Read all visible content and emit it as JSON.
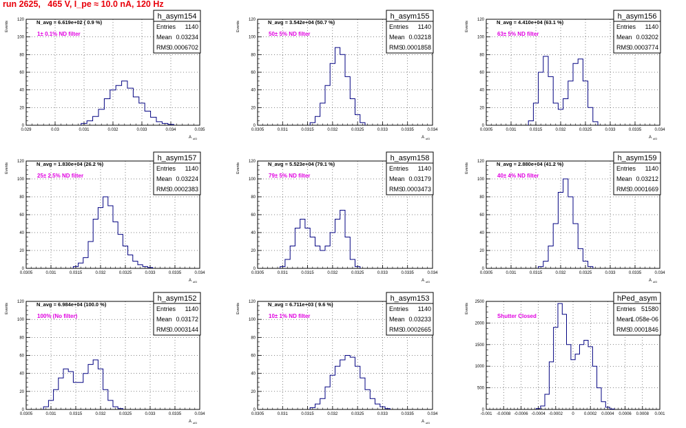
{
  "run_title": "run 2625,   465 V, I_pe ≈ 10.0 nA, 120 Hz",
  "colors": {
    "title": "#e8000b",
    "filter_label": "#e000e0",
    "histogram": "#000080",
    "grid": "#000000"
  },
  "chart_data": [
    {
      "type": "bar",
      "name": "h_asym154",
      "entries": "1140",
      "mean": "0.03234",
      "rms": "0.0006702",
      "navg": "N_avg = 6.619e+02 ( 0.9 %)",
      "filter_label": "1± 0.1% ND filter",
      "xlim": [
        0.029,
        0.035
      ],
      "ylim": [
        0,
        120
      ],
      "xticks": [
        "0.029",
        "0.03",
        "0.031",
        "0.032",
        "0.033",
        "0.034",
        "0.035"
      ],
      "yticks": [
        "0",
        "20",
        "40",
        "60",
        "80",
        "100",
        "120"
      ],
      "xlabel": "A_uID",
      "ylabel": "Events",
      "x": [
        0.031,
        0.0312,
        0.0314,
        0.0316,
        0.0318,
        0.032,
        0.0322,
        0.0324,
        0.0326,
        0.0328,
        0.033,
        0.0332,
        0.0334,
        0.0336,
        0.0338,
        0.034
      ],
      "values": [
        2,
        5,
        10,
        18,
        30,
        40,
        45,
        50,
        42,
        32,
        25,
        16,
        9,
        4,
        2,
        1
      ]
    },
    {
      "type": "bar",
      "name": "h_asym155",
      "entries": "1140",
      "mean": "0.03218",
      "rms": "0.0001858",
      "navg": "N_avg = 3.542e+04 (50.7 %)",
      "filter_label": "50± 5% ND filter",
      "xlim": [
        0.0305,
        0.034
      ],
      "ylim": [
        0,
        120
      ],
      "xticks": [
        "0.0305",
        "0.031",
        "0.0315",
        "0.032",
        "0.0325",
        "0.033",
        "0.0335",
        "0.034"
      ],
      "yticks": [
        "0",
        "20",
        "40",
        "60",
        "80",
        "100",
        "120"
      ],
      "xlabel": "A_uID",
      "ylabel": "Events",
      "x": [
        0.0316,
        0.0317,
        0.0318,
        0.0319,
        0.032,
        0.0321,
        0.0322,
        0.0323,
        0.0324,
        0.0325,
        0.0326
      ],
      "values": [
        3,
        10,
        25,
        45,
        70,
        88,
        80,
        55,
        30,
        12,
        3
      ]
    },
    {
      "type": "bar",
      "name": "h_asym156",
      "entries": "1140",
      "mean": "0.03202",
      "rms": "0.0003774",
      "navg": "N_avg = 4.410e+04 (63.1 %)",
      "filter_label": "63± 5% ND filter",
      "xlim": [
        0.0305,
        0.034
      ],
      "ylim": [
        0,
        120
      ],
      "xticks": [
        "0.0305",
        "0.031",
        "0.0315",
        "0.032",
        "0.0325",
        "0.033",
        "0.0335",
        "0.034"
      ],
      "yticks": [
        "0",
        "20",
        "40",
        "60",
        "80",
        "100",
        "120"
      ],
      "xlabel": "A_uID",
      "ylabel": "Events",
      "x": [
        0.0314,
        0.0315,
        0.0316,
        0.0317,
        0.0318,
        0.0319,
        0.032,
        0.0321,
        0.0322,
        0.0323,
        0.0324,
        0.0325,
        0.0326,
        0.0327
      ],
      "values": [
        5,
        25,
        60,
        78,
        55,
        25,
        18,
        30,
        50,
        70,
        75,
        50,
        20,
        4
      ]
    },
    {
      "type": "bar",
      "name": "h_asym157",
      "entries": "1140",
      "mean": "0.03224",
      "rms": "0.0002383",
      "navg": "N_avg = 1.830e+04 (26.2 %)",
      "filter_label": "25± 2.5% ND filter",
      "xlim": [
        0.0305,
        0.034
      ],
      "ylim": [
        0,
        120
      ],
      "xticks": [
        "0.0305",
        "0.031",
        "0.0315",
        "0.032",
        "0.0325",
        "0.033",
        "0.0335",
        "0.034"
      ],
      "yticks": [
        "0",
        "20",
        "40",
        "60",
        "80",
        "100",
        "120"
      ],
      "xlabel": "A_uID",
      "ylabel": "Events",
      "x": [
        0.0315,
        0.0316,
        0.0317,
        0.0318,
        0.0319,
        0.032,
        0.0321,
        0.0322,
        0.0323,
        0.0324,
        0.0325,
        0.0326,
        0.0327,
        0.0328,
        0.0329,
        0.033
      ],
      "values": [
        2,
        6,
        12,
        30,
        55,
        68,
        80,
        70,
        52,
        38,
        25,
        15,
        8,
        4,
        2,
        1
      ]
    },
    {
      "type": "bar",
      "name": "h_asym158",
      "entries": "1140",
      "mean": "0.03179",
      "rms": "0.0003473",
      "navg": "N_avg = 5.523e+04 (79.1 %)",
      "filter_label": "79± 5% ND filter",
      "xlim": [
        0.0305,
        0.034
      ],
      "ylim": [
        0,
        120
      ],
      "xticks": [
        "0.0305",
        "0.031",
        "0.0315",
        "0.032",
        "0.0325",
        "0.033",
        "0.0335",
        "0.034"
      ],
      "yticks": [
        "0",
        "20",
        "40",
        "60",
        "80",
        "100",
        "120"
      ],
      "xlabel": "A_uID",
      "ylabel": "Events",
      "x": [
        0.031,
        0.0311,
        0.0312,
        0.0313,
        0.0314,
        0.0315,
        0.0316,
        0.0317,
        0.0318,
        0.0319,
        0.032,
        0.0321,
        0.0322,
        0.0323,
        0.0324,
        0.0325
      ],
      "values": [
        2,
        10,
        25,
        45,
        55,
        45,
        35,
        25,
        20,
        25,
        40,
        55,
        65,
        35,
        10,
        2
      ]
    },
    {
      "type": "bar",
      "name": "h_asym159",
      "entries": "1140",
      "mean": "0.03212",
      "rms": "0.0001669",
      "navg": "N_avg = 2.880e+04 (41.2 %)",
      "filter_label": "40± 4% ND filter",
      "xlim": [
        0.0305,
        0.034
      ],
      "ylim": [
        0,
        120
      ],
      "xticks": [
        "0.0305",
        "0.031",
        "0.0315",
        "0.032",
        "0.0325",
        "0.033",
        "0.0335",
        "0.034"
      ],
      "yticks": [
        "0",
        "20",
        "40",
        "60",
        "80",
        "100",
        "120"
      ],
      "xlabel": "A_uID",
      "ylabel": "Events",
      "x": [
        0.0316,
        0.0317,
        0.0318,
        0.0319,
        0.032,
        0.0321,
        0.0322,
        0.0323,
        0.0324,
        0.0325,
        0.0326
      ],
      "values": [
        2,
        8,
        25,
        50,
        85,
        100,
        80,
        50,
        22,
        8,
        2
      ]
    },
    {
      "type": "bar",
      "name": "h_asym152",
      "entries": "1140",
      "mean": "0.03172",
      "rms": "0.0003144",
      "navg": "N_avg = 6.984e+04 (100.0 %)",
      "filter_label": "100% (No filter)",
      "xlim": [
        0.0305,
        0.034
      ],
      "ylim": [
        0,
        120
      ],
      "xticks": [
        "0.0305",
        "0.031",
        "0.0315",
        "0.032",
        "0.0325",
        "0.033",
        "0.0335",
        "0.034"
      ],
      "yticks": [
        "0",
        "20",
        "40",
        "60",
        "80",
        "100",
        "120"
      ],
      "xlabel": "A_uID",
      "ylabel": "Events",
      "x": [
        0.0309,
        0.031,
        0.0311,
        0.0312,
        0.0313,
        0.0314,
        0.0315,
        0.0316,
        0.0317,
        0.0318,
        0.0319,
        0.032,
        0.0321,
        0.0322,
        0.0323,
        0.0324
      ],
      "values": [
        3,
        10,
        22,
        35,
        45,
        42,
        30,
        30,
        40,
        50,
        55,
        45,
        22,
        10,
        3,
        1
      ]
    },
    {
      "type": "bar",
      "name": "h_asym153",
      "entries": "1140",
      "mean": "0.03233",
      "rms": "0.0002665",
      "navg": "N_avg = 6.711e+03 ( 9.6 %)",
      "filter_label": "10± 1% ND filter",
      "xlim": [
        0.0305,
        0.034
      ],
      "ylim": [
        0,
        120
      ],
      "xticks": [
        "0.0305",
        "0.031",
        "0.0315",
        "0.032",
        "0.0325",
        "0.033",
        "0.0335",
        "0.034"
      ],
      "yticks": [
        "0",
        "20",
        "40",
        "60",
        "80",
        "100",
        "120"
      ],
      "xlabel": "A_uID",
      "ylabel": "Events",
      "x": [
        0.0316,
        0.0317,
        0.0318,
        0.0319,
        0.032,
        0.0321,
        0.0322,
        0.0323,
        0.0324,
        0.0325,
        0.0326,
        0.0327,
        0.0328,
        0.0329,
        0.033,
        0.0331
      ],
      "values": [
        2,
        6,
        12,
        25,
        38,
        48,
        55,
        60,
        58,
        48,
        35,
        22,
        12,
        6,
        3,
        1
      ]
    },
    {
      "type": "bar",
      "name": "hPed_asym",
      "entries": "51580",
      "mean": "1.058e-06",
      "rms": "0.0001846",
      "navg": "",
      "filter_label": "Shutter Closed",
      "xlim": [
        -0.001,
        0.001
      ],
      "ylim": [
        0,
        2500
      ],
      "xticks": [
        "-0.001",
        "-0.0008",
        "-0.0006",
        "-0.0004",
        "-0.0002",
        "0",
        "0.0002",
        "0.0004",
        "0.0006",
        "0.0008",
        "0.001"
      ],
      "yticks": [
        "0",
        "500",
        "1000",
        "1500",
        "2000",
        "2500"
      ],
      "xlabel": "",
      "ylabel": "Events",
      "x": [
        -0.0004,
        -0.00035,
        -0.0003,
        -0.00025,
        -0.0002,
        -0.00015,
        -0.0001,
        -5e-05,
        0.0,
        5e-05,
        0.0001,
        0.00015,
        0.0002,
        0.00025,
        0.0003,
        0.00035,
        0.0004,
        0.00045
      ],
      "values": [
        20,
        80,
        350,
        1100,
        1900,
        2450,
        2200,
        1500,
        1150,
        1280,
        1500,
        1600,
        1450,
        1000,
        500,
        180,
        50,
        10
      ]
    }
  ]
}
